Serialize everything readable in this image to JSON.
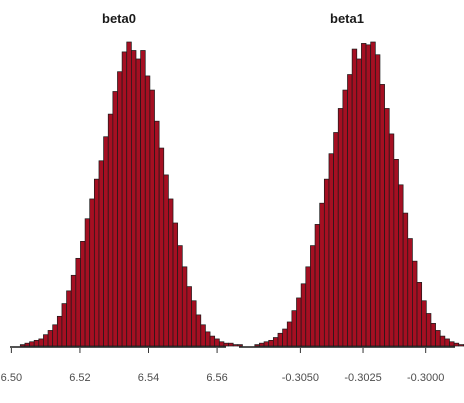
{
  "chart_data": [
    {
      "type": "histogram",
      "title": "beta0",
      "xlabel": "",
      "ylabel": "",
      "xlim": [
        6.4996,
        6.5626
      ],
      "x_ticks": [
        6.5,
        6.52,
        6.54,
        6.56
      ],
      "x_tick_labels": [
        "6.50",
        "6.52",
        "6.54",
        "6.56"
      ],
      "bin_start": 6.5026,
      "bin_width": 0.00135,
      "counts": [
        1,
        2,
        3,
        4,
        5,
        8,
        11,
        15,
        21,
        30,
        39,
        50,
        62,
        74,
        90,
        104,
        118,
        131,
        148,
        164,
        180,
        194,
        208,
        215,
        209,
        203,
        209,
        191,
        181,
        159,
        140,
        121,
        104,
        87,
        71,
        56,
        42,
        32,
        22,
        15,
        10,
        7,
        5,
        3,
        2,
        2,
        1,
        1
      ],
      "bar_color": "#a50f22",
      "grid": false,
      "y_axis_shown": false
    },
    {
      "type": "histogram",
      "title": "beta1",
      "xlabel": "",
      "ylabel": "",
      "xlim": [
        -0.30745,
        -0.29883
      ],
      "x_ticks": [
        -0.305,
        -0.3025,
        -0.3
      ],
      "x_tick_labels": [
        "-0.3050",
        "-0.3025",
        "-0.3000"
      ],
      "bin_start": -0.30682,
      "bin_width": 0.000185,
      "counts": [
        1,
        2,
        3,
        4,
        6,
        9,
        12,
        17,
        25,
        34,
        44,
        56,
        71,
        86,
        101,
        118,
        136,
        151,
        168,
        181,
        192,
        210,
        203,
        214,
        213,
        215,
        206,
        185,
        168,
        150,
        132,
        114,
        94,
        76,
        60,
        45,
        32,
        23,
        16,
        11,
        7,
        5,
        3,
        2,
        1,
        1
      ],
      "bar_color": "#a50f22",
      "grid": false,
      "y_axis_shown": false
    }
  ]
}
